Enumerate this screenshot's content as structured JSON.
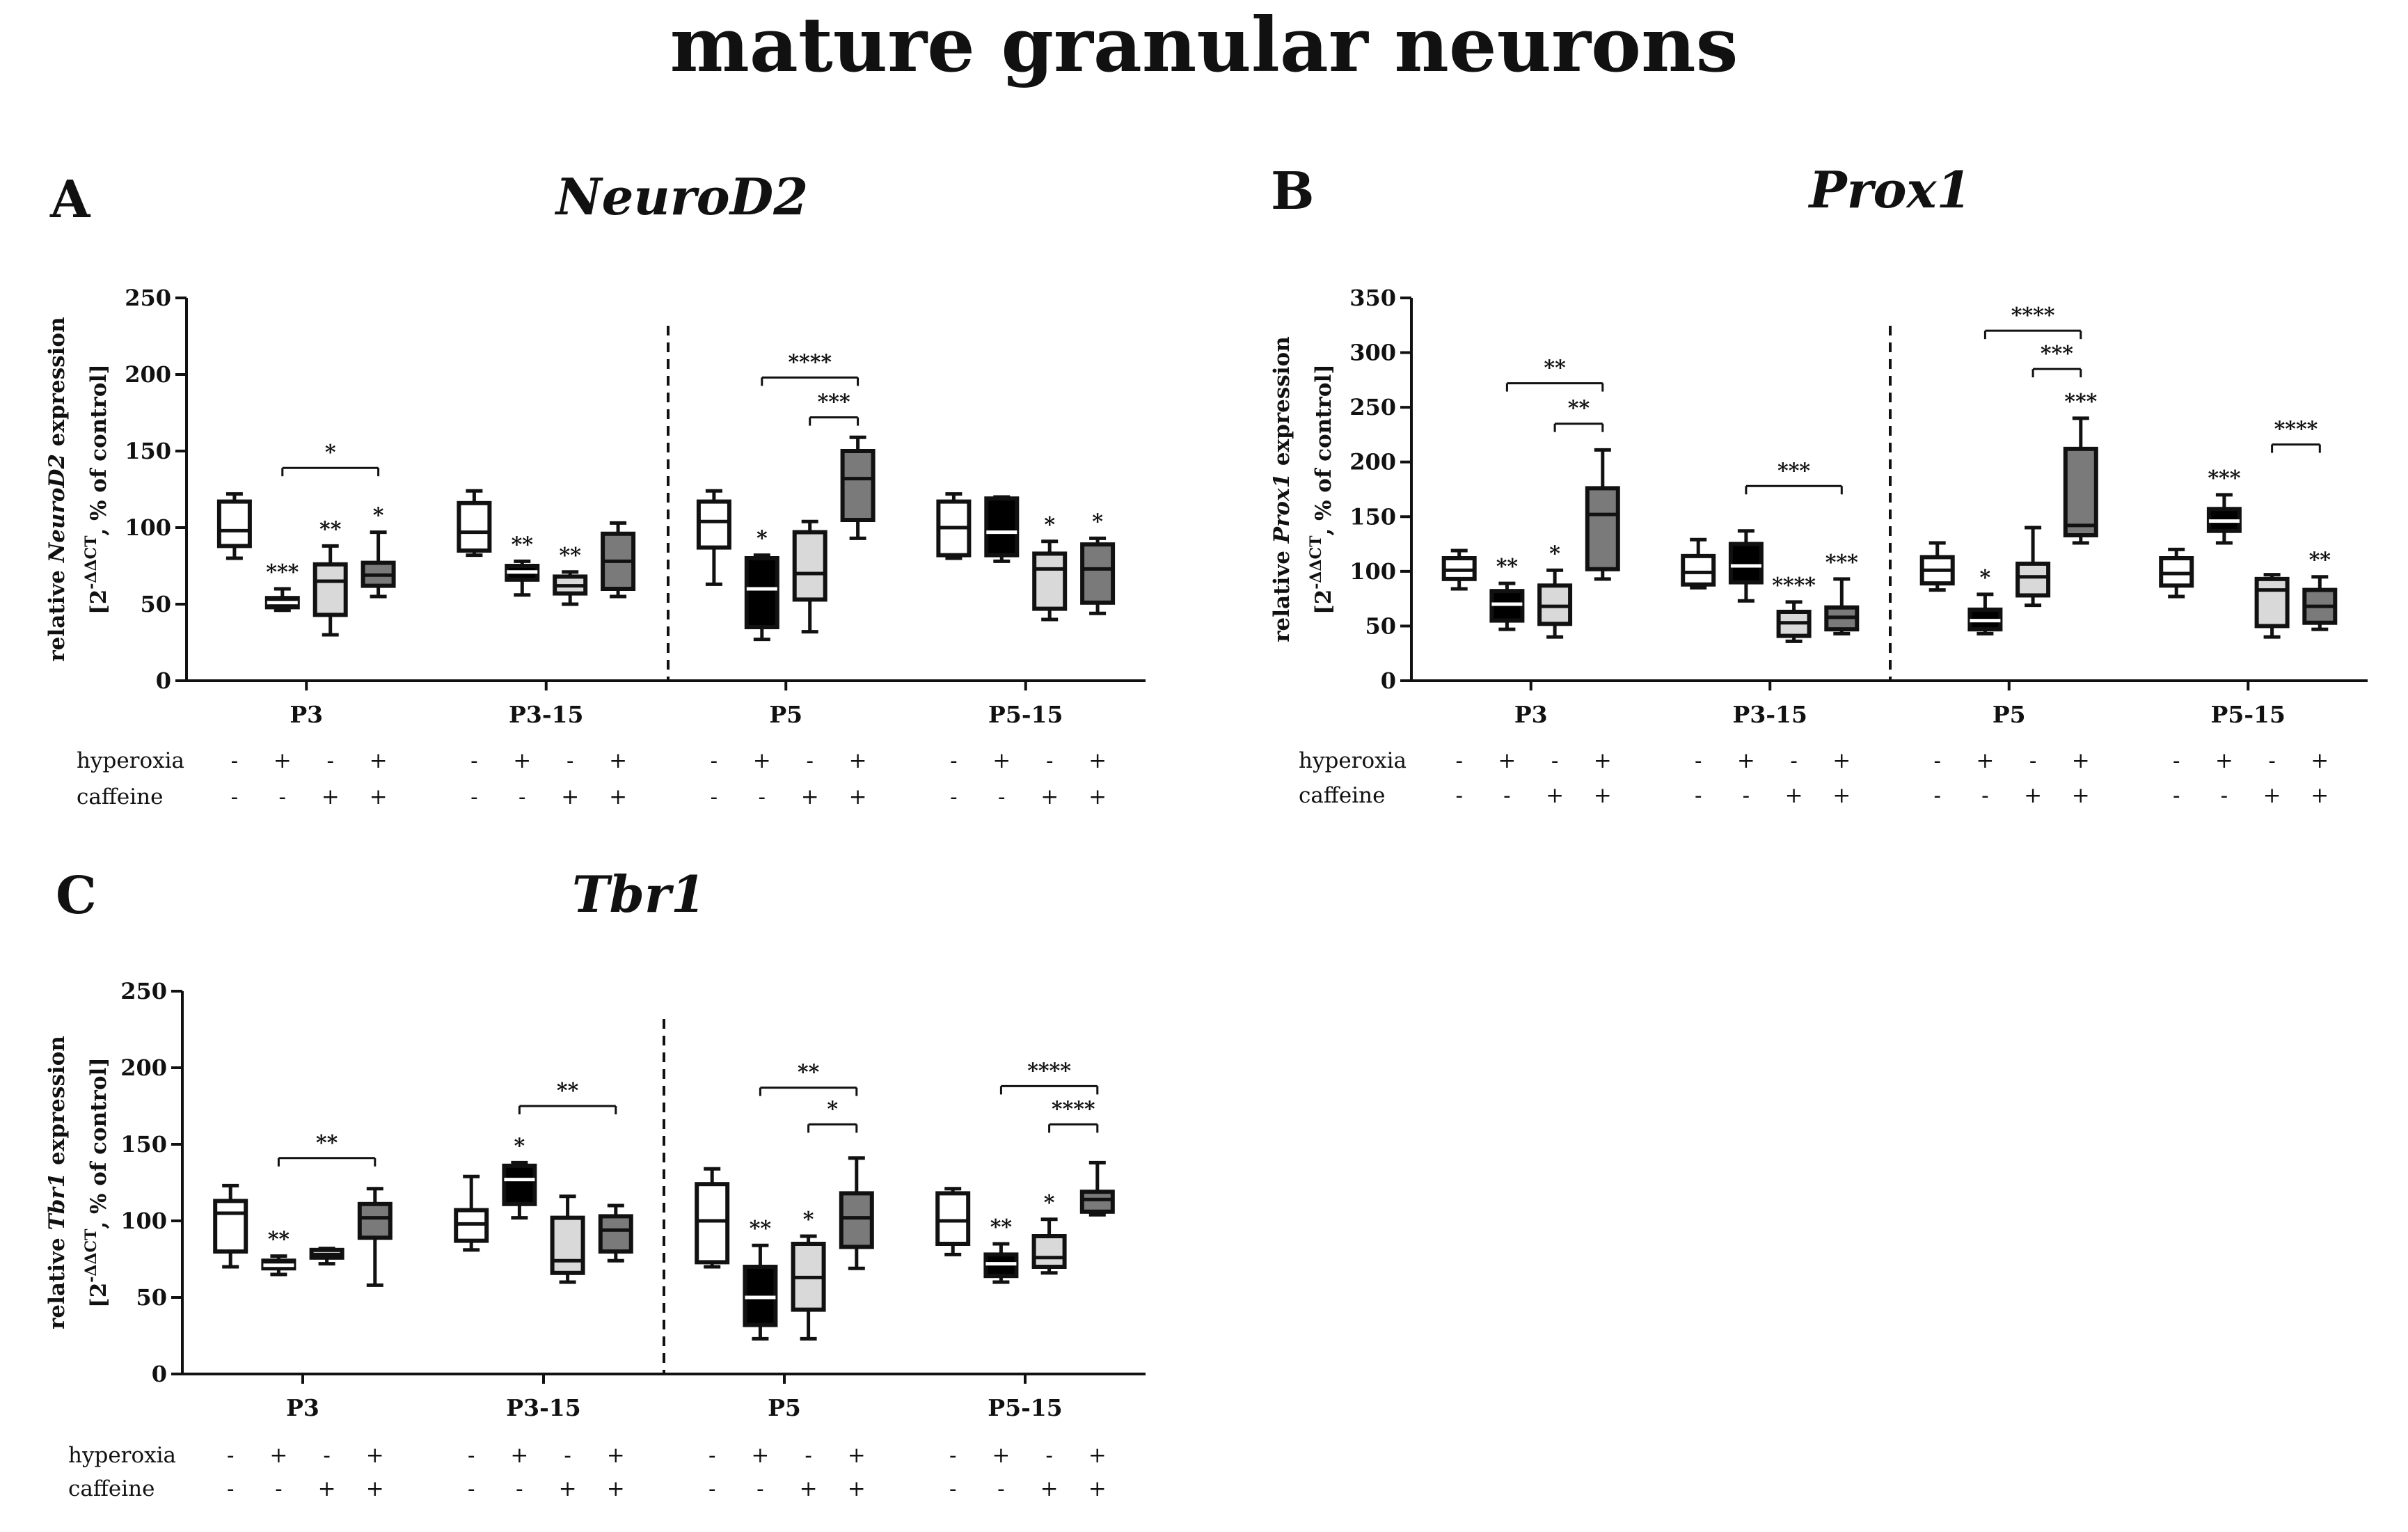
{
  "title": "mature granular neurons",
  "row_labels": {
    "hyperoxia": "hyperoxia",
    "caffeine": "caffeine"
  },
  "conditions": {
    "hyperoxia": [
      "-",
      "+",
      "-",
      "+"
    ],
    "caffeine": [
      "-",
      "-",
      "+",
      "+"
    ]
  },
  "box_fills": [
    "#ffffff",
    "#000000",
    "#d9d9d9",
    "#7a7a7a"
  ],
  "chart_data": [
    {
      "panel": "A",
      "type": "boxplot",
      "gene": "NeuroD2",
      "ylabel_pre": "relative ",
      "ylabel_gene": "NeuroD2",
      "ylabel_post": " expression",
      "ylabel2_pre": "[2",
      "ylabel2_sup": "-ΔΔCT",
      "ylabel2_post": ", % of control]",
      "ylim": [
        0,
        250
      ],
      "yticks": [
        0,
        50,
        100,
        150,
        200,
        250
      ],
      "groups": [
        {
          "label": "P3",
          "boxes": [
            {
              "min": 80,
              "q1": 88,
              "median": 98,
              "q3": 117,
              "max": 122,
              "sig": ""
            },
            {
              "min": 46,
              "q1": 48,
              "median": 51,
              "q3": 54,
              "max": 60,
              "sig": "***"
            },
            {
              "min": 30,
              "q1": 43,
              "median": 65,
              "q3": 76,
              "max": 88,
              "sig": "**"
            },
            {
              "min": 55,
              "q1": 62,
              "median": 69,
              "q3": 77,
              "max": 97,
              "sig": "*"
            }
          ],
          "brackets": [
            {
              "from": 1,
              "to": 3,
              "label": "*",
              "y": 139
            }
          ]
        },
        {
          "label": "P3-15",
          "boxes": [
            {
              "min": 82,
              "q1": 85,
              "median": 97,
              "q3": 116,
              "max": 124,
              "sig": ""
            },
            {
              "min": 56,
              "q1": 66,
              "median": 71,
              "q3": 75,
              "max": 78,
              "sig": "**"
            },
            {
              "min": 50,
              "q1": 57,
              "median": 62,
              "q3": 68,
              "max": 71,
              "sig": "**"
            },
            {
              "min": 55,
              "q1": 60,
              "median": 78,
              "q3": 96,
              "max": 103,
              "sig": ""
            }
          ],
          "brackets": []
        },
        {
          "label": "P5",
          "boxes": [
            {
              "min": 63,
              "q1": 87,
              "median": 104,
              "q3": 117,
              "max": 124,
              "sig": ""
            },
            {
              "min": 27,
              "q1": 35,
              "median": 60,
              "q3": 80,
              "max": 82,
              "sig": "*"
            },
            {
              "min": 32,
              "q1": 53,
              "median": 70,
              "q3": 97,
              "max": 104,
              "sig": ""
            },
            {
              "min": 93,
              "q1": 105,
              "median": 132,
              "q3": 150,
              "max": 159,
              "sig": ""
            }
          ],
          "brackets": [
            {
              "from": 1,
              "to": 3,
              "label": "****",
              "y": 198
            },
            {
              "from": 2,
              "to": 3,
              "label": "***",
              "y": 172
            }
          ]
        },
        {
          "label": "P5-15",
          "boxes": [
            {
              "min": 80,
              "q1": 82,
              "median": 100,
              "q3": 117,
              "max": 122,
              "sig": ""
            },
            {
              "min": 78,
              "q1": 82,
              "median": 97,
              "q3": 119,
              "max": 120,
              "sig": ""
            },
            {
              "min": 40,
              "q1": 47,
              "median": 73,
              "q3": 83,
              "max": 91,
              "sig": "*"
            },
            {
              "min": 44,
              "q1": 51,
              "median": 73,
              "q3": 89,
              "max": 93,
              "sig": "*"
            }
          ],
          "brackets": []
        }
      ]
    },
    {
      "panel": "B",
      "type": "boxplot",
      "gene": "Prox1",
      "ylabel_pre": "relative ",
      "ylabel_gene": "Prox1",
      "ylabel_post": " expression",
      "ylabel2_pre": "[2",
      "ylabel2_sup": "-ΔΔCT",
      "ylabel2_post": ", % of control]",
      "ylim": [
        0,
        350
      ],
      "yticks": [
        0,
        50,
        100,
        150,
        200,
        250,
        300,
        350
      ],
      "groups": [
        {
          "label": "P3",
          "boxes": [
            {
              "min": 84,
              "q1": 93,
              "median": 101,
              "q3": 112,
              "max": 119,
              "sig": ""
            },
            {
              "min": 47,
              "q1": 55,
              "median": 70,
              "q3": 82,
              "max": 89,
              "sig": "**"
            },
            {
              "min": 40,
              "q1": 52,
              "median": 68,
              "q3": 87,
              "max": 101,
              "sig": "*"
            },
            {
              "min": 93,
              "q1": 102,
              "median": 152,
              "q3": 176,
              "max": 211,
              "sig": ""
            }
          ],
          "brackets": [
            {
              "from": 1,
              "to": 3,
              "label": "**",
              "y": 272
            },
            {
              "from": 2,
              "to": 3,
              "label": "**",
              "y": 235
            }
          ]
        },
        {
          "label": "P3-15",
          "boxes": [
            {
              "min": 85,
              "q1": 88,
              "median": 99,
              "q3": 114,
              "max": 129,
              "sig": ""
            },
            {
              "min": 73,
              "q1": 90,
              "median": 105,
              "q3": 125,
              "max": 137,
              "sig": ""
            },
            {
              "min": 36,
              "q1": 41,
              "median": 53,
              "q3": 63,
              "max": 72,
              "sig": "****"
            },
            {
              "min": 43,
              "q1": 47,
              "median": 58,
              "q3": 67,
              "max": 93,
              "sig": "***"
            }
          ],
          "brackets": [
            {
              "from": 1,
              "to": 3,
              "label": "***",
              "y": 178
            }
          ]
        },
        {
          "label": "P5",
          "boxes": [
            {
              "min": 83,
              "q1": 89,
              "median": 101,
              "q3": 113,
              "max": 126,
              "sig": ""
            },
            {
              "min": 43,
              "q1": 47,
              "median": 55,
              "q3": 65,
              "max": 79,
              "sig": "*"
            },
            {
              "min": 69,
              "q1": 78,
              "median": 95,
              "q3": 107,
              "max": 140,
              "sig": ""
            },
            {
              "min": 126,
              "q1": 133,
              "median": 142,
              "q3": 212,
              "max": 240,
              "sig": "***"
            }
          ],
          "brackets": [
            {
              "from": 1,
              "to": 3,
              "label": "****",
              "y": 320
            },
            {
              "from": 2,
              "to": 3,
              "label": "***",
              "y": 285
            }
          ]
        },
        {
          "label": "P5-15",
          "boxes": [
            {
              "min": 77,
              "q1": 87,
              "median": 98,
              "q3": 112,
              "max": 120,
              "sig": ""
            },
            {
              "min": 126,
              "q1": 137,
              "median": 146,
              "q3": 157,
              "max": 170,
              "sig": "***"
            },
            {
              "min": 40,
              "q1": 50,
              "median": 83,
              "q3": 93,
              "max": 97,
              "sig": ""
            },
            {
              "min": 47,
              "q1": 53,
              "median": 68,
              "q3": 83,
              "max": 95,
              "sig": "**"
            }
          ],
          "brackets": [
            {
              "from": 2,
              "to": 3,
              "label": "****",
              "y": 216
            }
          ]
        }
      ]
    },
    {
      "panel": "C",
      "type": "boxplot",
      "gene": "Tbr1",
      "ylabel_pre": "relative ",
      "ylabel_gene": "Tbr1",
      "ylabel_post": " expression",
      "ylabel2_pre": "[2",
      "ylabel2_sup": "-ΔΔCT",
      "ylabel2_post": ", % of control]",
      "ylim": [
        0,
        250
      ],
      "yticks": [
        0,
        50,
        100,
        150,
        200,
        250
      ],
      "groups": [
        {
          "label": "P3",
          "boxes": [
            {
              "min": 70,
              "q1": 80,
              "median": 105,
              "q3": 113,
              "max": 123,
              "sig": ""
            },
            {
              "min": 65,
              "q1": 69,
              "median": 71,
              "q3": 74,
              "max": 77,
              "sig": "**"
            },
            {
              "min": 72,
              "q1": 76,
              "median": 78,
              "q3": 81,
              "max": 82,
              "sig": ""
            },
            {
              "min": 58,
              "q1": 89,
              "median": 102,
              "q3": 111,
              "max": 121,
              "sig": ""
            }
          ],
          "brackets": [
            {
              "from": 1,
              "to": 3,
              "label": "**",
              "y": 141
            }
          ]
        },
        {
          "label": "P3-15",
          "boxes": [
            {
              "min": 81,
              "q1": 87,
              "median": 98,
              "q3": 107,
              "max": 129,
              "sig": ""
            },
            {
              "min": 102,
              "q1": 111,
              "median": 127,
              "q3": 136,
              "max": 138,
              "sig": "*"
            },
            {
              "min": 60,
              "q1": 66,
              "median": 74,
              "q3": 102,
              "max": 116,
              "sig": ""
            },
            {
              "min": 74,
              "q1": 80,
              "median": 94,
              "q3": 103,
              "max": 110,
              "sig": ""
            }
          ],
          "brackets": [
            {
              "from": 1,
              "to": 3,
              "label": "**",
              "y": 175
            }
          ]
        },
        {
          "label": "P5",
          "boxes": [
            {
              "min": 70,
              "q1": 73,
              "median": 100,
              "q3": 124,
              "max": 134,
              "sig": ""
            },
            {
              "min": 23,
              "q1": 32,
              "median": 50,
              "q3": 70,
              "max": 84,
              "sig": "**"
            },
            {
              "min": 23,
              "q1": 42,
              "median": 63,
              "q3": 85,
              "max": 90,
              "sig": "*"
            },
            {
              "min": 69,
              "q1": 83,
              "median": 102,
              "q3": 118,
              "max": 141,
              "sig": ""
            }
          ],
          "brackets": [
            {
              "from": 1,
              "to": 3,
              "label": "**",
              "y": 187
            },
            {
              "from": 2,
              "to": 3,
              "label": "*",
              "y": 163
            }
          ]
        },
        {
          "label": "P5-15",
          "boxes": [
            {
              "min": 78,
              "q1": 85,
              "median": 100,
              "q3": 118,
              "max": 121,
              "sig": ""
            },
            {
              "min": 60,
              "q1": 64,
              "median": 72,
              "q3": 78,
              "max": 85,
              "sig": "**"
            },
            {
              "min": 66,
              "q1": 70,
              "median": 76,
              "q3": 90,
              "max": 101,
              "sig": "*"
            },
            {
              "min": 104,
              "q1": 106,
              "median": 114,
              "q3": 119,
              "max": 138,
              "sig": ""
            }
          ],
          "brackets": [
            {
              "from": 1,
              "to": 3,
              "label": "****",
              "y": 188
            },
            {
              "from": 2,
              "to": 3,
              "label": "****",
              "y": 163
            }
          ]
        }
      ]
    }
  ]
}
